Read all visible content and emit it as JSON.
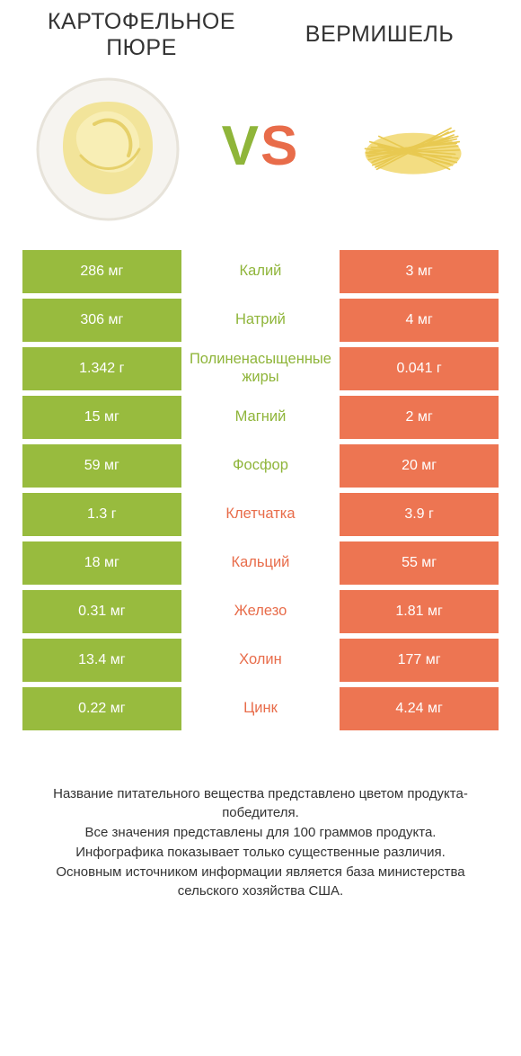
{
  "colors": {
    "green": "#98bb3e",
    "orange": "#ed7552",
    "mid_green_text": "#8fb53a",
    "mid_orange_text": "#e86c4a",
    "title_text": "#333333",
    "footer_text": "#333333",
    "background": "#ffffff"
  },
  "title_left": "КАРТОФЕЛЬНОЕ\nПЮРЕ",
  "title_right": "ВЕРМИШЕЛЬ",
  "vs_label": "VS",
  "rows": [
    {
      "left": "286 мг",
      "mid": "Калий",
      "right": "3 мг",
      "winner": "left"
    },
    {
      "left": "306 мг",
      "mid": "Натрий",
      "right": "4 мг",
      "winner": "left"
    },
    {
      "left": "1.342 г",
      "mid": "Полиненасыщенные жиры",
      "right": "0.041 г",
      "winner": "left"
    },
    {
      "left": "15 мг",
      "mid": "Магний",
      "right": "2 мг",
      "winner": "left"
    },
    {
      "left": "59 мг",
      "mid": "Фосфор",
      "right": "20 мг",
      "winner": "left"
    },
    {
      "left": "1.3 г",
      "mid": "Клетчатка",
      "right": "3.9 г",
      "winner": "right"
    },
    {
      "left": "18 мг",
      "mid": "Кальций",
      "right": "55 мг",
      "winner": "right"
    },
    {
      "left": "0.31 мг",
      "mid": "Железо",
      "right": "1.81 мг",
      "winner": "right"
    },
    {
      "left": "13.4 мг",
      "mid": "Холин",
      "right": "177 мг",
      "winner": "right"
    },
    {
      "left": "0.22 мг",
      "mid": "Цинк",
      "right": "4.24 мг",
      "winner": "right"
    }
  ],
  "footer_lines": [
    "Название питательного вещества представлено цветом продукта-победителя.",
    "Все значения представлены для 100 граммов продукта.",
    "Инфографика показывает только существенные различия.",
    "Основным источником информации является база министерства сельского хозяйства США."
  ],
  "typography": {
    "title_fontsize": 25,
    "vs_fontsize": 62,
    "cell_fontsize": 16,
    "mid_fontsize": 16.5,
    "footer_fontsize": 15
  }
}
